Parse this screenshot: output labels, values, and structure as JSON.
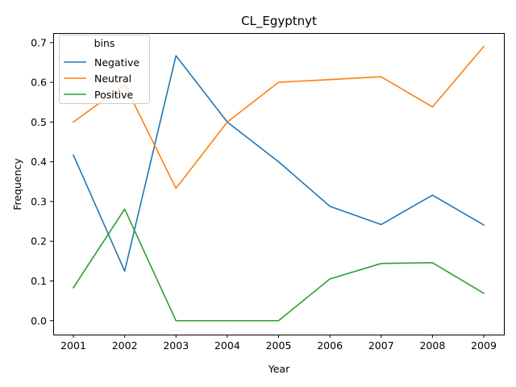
{
  "chart_data": {
    "type": "line",
    "title": "CL_Egyptnyt",
    "xlabel": "Year",
    "ylabel": "Frequency",
    "x": [
      "2001",
      "2002",
      "2003",
      "2004",
      "2005",
      "2006",
      "2007",
      "2008",
      "2009"
    ],
    "y_ticks": [
      "0.0",
      "0.1",
      "0.2",
      "0.3",
      "0.4",
      "0.5",
      "0.6",
      "0.7"
    ],
    "ylim": [
      -0.035,
      0.724
    ],
    "legend": {
      "title": "bins",
      "placement": "top-left"
    },
    "grid": false,
    "series": [
      {
        "name": "Negative",
        "color": "#1f77b4",
        "values": [
          0.417,
          0.125,
          0.667,
          0.5,
          0.4,
          0.288,
          0.242,
          0.316,
          0.241
        ]
      },
      {
        "name": "Neutral",
        "color": "#ff7f0e",
        "values": [
          0.5,
          0.594,
          0.333,
          0.5,
          0.6,
          0.607,
          0.614,
          0.538,
          0.69
        ]
      },
      {
        "name": "Positive",
        "color": "#2ca02c",
        "values": [
          0.083,
          0.281,
          0.0,
          0.0,
          0.0,
          0.105,
          0.144,
          0.146,
          0.069
        ]
      }
    ]
  }
}
